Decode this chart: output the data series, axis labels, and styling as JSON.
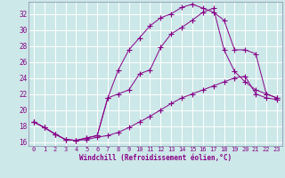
{
  "xlabel": "Windchill (Refroidissement éolien,°C)",
  "bg_color": "#cce8e8",
  "line_color": "#880088",
  "grid_color": "#ffffff",
  "xmin": -0.5,
  "xmax": 23.5,
  "ymin": 15.5,
  "ymax": 33.5,
  "yticks": [
    16,
    18,
    20,
    22,
    24,
    26,
    28,
    30,
    32
  ],
  "xticks": [
    0,
    1,
    2,
    3,
    4,
    5,
    6,
    7,
    8,
    9,
    10,
    11,
    12,
    13,
    14,
    15,
    16,
    17,
    18,
    19,
    20,
    21,
    22,
    23
  ],
  "line1_x": [
    0,
    1,
    2,
    3,
    4,
    5,
    6,
    7,
    8,
    9,
    10,
    11,
    12,
    13,
    14,
    15,
    16,
    17,
    18,
    19,
    20,
    21,
    22,
    23
  ],
  "line1_y": [
    18.5,
    17.8,
    17.0,
    16.3,
    16.2,
    16.3,
    16.6,
    16.8,
    17.2,
    17.8,
    18.5,
    19.2,
    20.0,
    20.8,
    21.5,
    22.0,
    22.5,
    23.0,
    23.5,
    24.0,
    24.2,
    22.0,
    21.5,
    21.3
  ],
  "line2_x": [
    0,
    1,
    2,
    3,
    4,
    5,
    6,
    7,
    8,
    9,
    10,
    11,
    12,
    13,
    14,
    15,
    16,
    17,
    18,
    19,
    20,
    21,
    22,
    23
  ],
  "line2_y": [
    18.5,
    17.8,
    17.0,
    16.3,
    16.2,
    16.5,
    16.8,
    21.5,
    22.0,
    22.5,
    24.5,
    25.0,
    27.8,
    29.5,
    30.3,
    31.2,
    32.2,
    32.7,
    27.5,
    24.8,
    23.5,
    22.5,
    22.0,
    21.5
  ],
  "line3_x": [
    0,
    1,
    2,
    3,
    4,
    5,
    6,
    7,
    8,
    9,
    10,
    11,
    12,
    13,
    14,
    15,
    16,
    17,
    18,
    19,
    20,
    21,
    22,
    23
  ],
  "line3_y": [
    18.5,
    17.8,
    17.0,
    16.3,
    16.2,
    16.5,
    16.8,
    21.5,
    25.0,
    27.5,
    29.0,
    30.5,
    31.5,
    32.0,
    32.8,
    33.2,
    32.7,
    32.2,
    31.2,
    27.5,
    27.5,
    27.0,
    22.0,
    21.5
  ]
}
